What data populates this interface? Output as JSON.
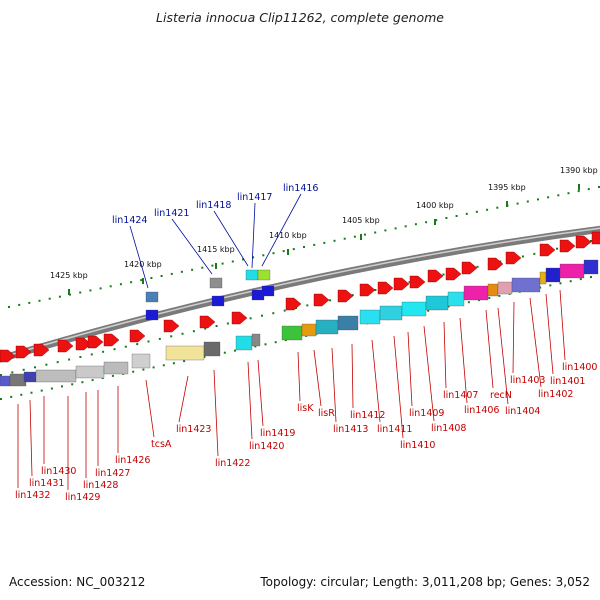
{
  "title": "Listeria innocua Clip11262, complete genome",
  "footer": {
    "accession": "Accession: NC_003212",
    "summary": "Topology: circular; Length: 3,011,208 bp; Genes: 3,052"
  },
  "kbp_labels": [
    "1425 kbp",
    "1420 kbp",
    "1415 kbp",
    "1410 kbp",
    "1405 kbp",
    "1400 kbp",
    "1395 kbp",
    "1390 kbp"
  ],
  "reverse_gene_labels": [
    "lin1424",
    "lin1421",
    "lin1418",
    "lin1417",
    "lin1416"
  ],
  "forward_gene_labels": [
    "lin1432",
    "lin1431",
    "lin1430",
    "lin1429",
    "lin1428",
    "lin1427",
    "lin1426",
    "tcsA",
    "lin1423",
    "lin1422",
    "lin1420",
    "lin1419",
    "lisK",
    "lisR",
    "lin1413",
    "lin1412",
    "lin1411",
    "lin1410",
    "lin1409",
    "lin1408",
    "lin1407",
    "lin1406",
    "recN",
    "lin1404",
    "lin1403",
    "lin1402",
    "lin1401",
    "lin1400"
  ],
  "colors": {
    "gene_red": "#ee1111",
    "label_red": "#c40000",
    "label_blue": "#00109a",
    "tick_green": "#1a7a1a",
    "backbone": "#7a7a7a"
  }
}
